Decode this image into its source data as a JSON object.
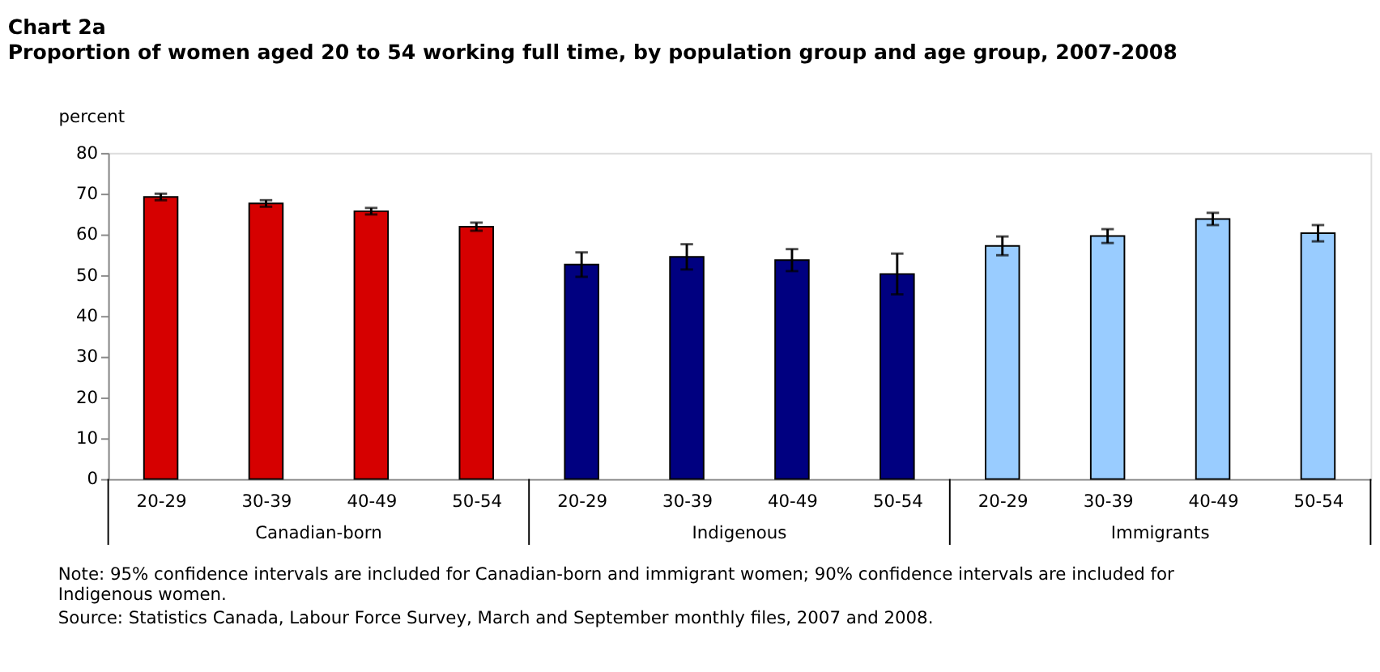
{
  "chart_data": {
    "type": "bar",
    "title": "Chart 2a",
    "subtitle": "Proportion of women aged 20 to 54 working full time, by population group and age group, 2007-2008",
    "ylabel": "percent",
    "categories": [
      "20-29",
      "30-39",
      "40-49",
      "50-54",
      "20-29",
      "30-39",
      "40-49",
      "50-54",
      "20-29",
      "30-39",
      "40-49",
      "50-54"
    ],
    "series": [
      {
        "name": "Canadian-born",
        "color": "#d60000",
        "values": [
          69.2,
          67.6,
          65.7,
          61.9,
          null,
          null,
          null,
          null,
          null,
          null,
          null,
          null
        ],
        "errors": [
          0.8,
          0.8,
          0.8,
          1.0,
          null,
          null,
          null,
          null,
          null,
          null,
          null,
          null
        ]
      },
      {
        "name": "Indigenous",
        "color": "#000080",
        "values": [
          null,
          null,
          null,
          null,
          52.6,
          54.5,
          53.7,
          50.3,
          null,
          null,
          null,
          null
        ],
        "errors": [
          null,
          null,
          null,
          null,
          3.0,
          3.1,
          2.7,
          5.0,
          null,
          null,
          null,
          null
        ]
      },
      {
        "name": "Immigrants",
        "color": "#99ccff",
        "values": [
          null,
          null,
          null,
          null,
          null,
          null,
          null,
          null,
          57.2,
          59.6,
          63.8,
          60.3
        ],
        "errors": [
          null,
          null,
          null,
          null,
          null,
          null,
          null,
          null,
          2.3,
          1.7,
          1.5,
          2.0
        ]
      }
    ],
    "ylim": [
      0,
      80
    ],
    "yticks": [
      0,
      10,
      20,
      30,
      40,
      50,
      60,
      70,
      80
    ],
    "grid": false,
    "legend": false,
    "annotations": [
      "Note: 95% confidence intervals are included for Canadian-born and immigrant women; 90% confidence intervals are included for Indigenous women.",
      "Source: Statistics Canada, Labour Force Survey, March and September monthly files, 2007 and 2008."
    ]
  }
}
